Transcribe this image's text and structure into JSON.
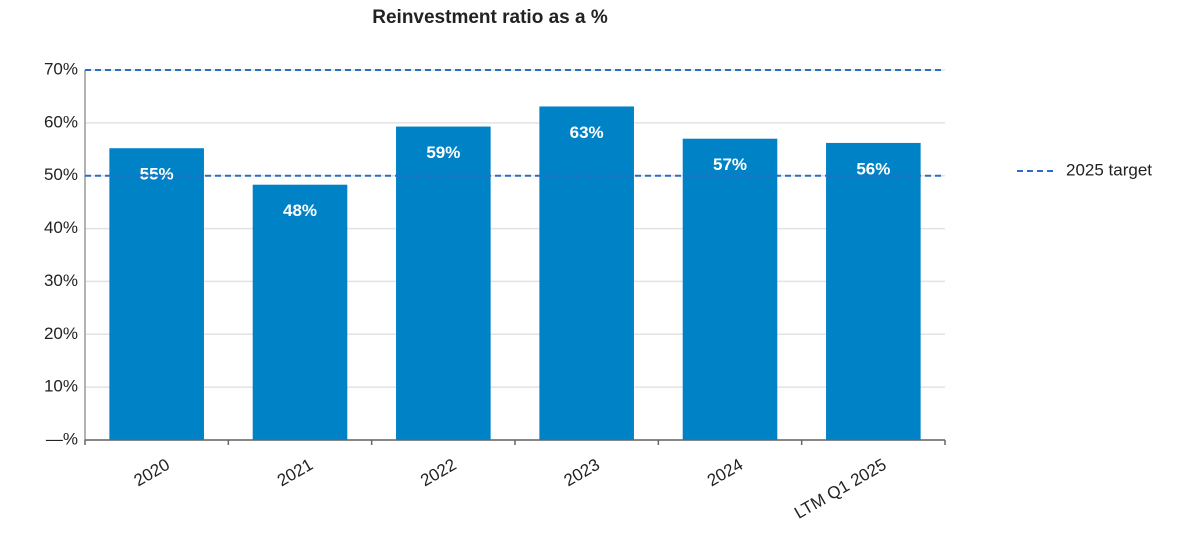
{
  "chart_data": {
    "type": "bar",
    "title": "Reinvestment ratio as a %",
    "categories": [
      "2020",
      "2021",
      "2022",
      "2023",
      "2024",
      "LTM Q1 2025"
    ],
    "values": [
      55.2,
      48.3,
      59.3,
      63.1,
      57.0,
      56.2
    ],
    "value_labels": [
      "55%",
      "48%",
      "59%",
      "63%",
      "57%",
      "56%"
    ],
    "color": "#0082c6",
    "target": {
      "name": "2025 target",
      "color": "#2b6cc4",
      "values": [
        50,
        70
      ]
    },
    "ylim": [
      0,
      70
    ],
    "yticks": [
      {
        "value": 0,
        "label": "—%"
      },
      {
        "value": 10,
        "label": "10%"
      },
      {
        "value": 20,
        "label": "20%"
      },
      {
        "value": 30,
        "label": "30%"
      },
      {
        "value": 40,
        "label": "40%"
      },
      {
        "value": 50,
        "label": "50%"
      },
      {
        "value": 60,
        "label": "60%"
      },
      {
        "value": 70,
        "label": "70%"
      }
    ],
    "grid": true
  }
}
